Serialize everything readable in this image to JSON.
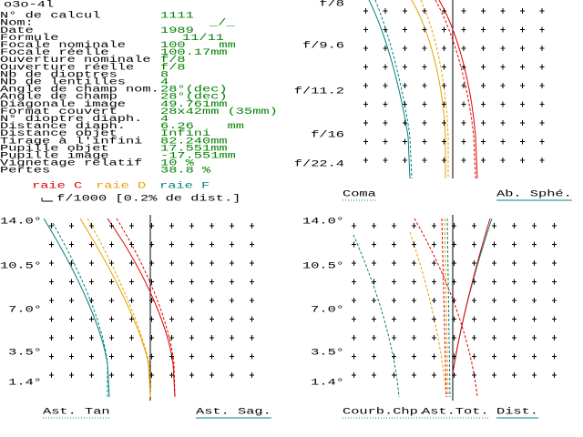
{
  "title": "o3o-4l",
  "params": [
    {
      "label": "N° de calcul",
      "value": "1111"
    },
    {
      "label": "Nom:",
      "value": "_/_"
    },
    {
      "label": "Date",
      "value": "1989"
    },
    {
      "label": "Formule",
      "value": "11/11"
    },
    {
      "label": "Focale nominale",
      "value": "100    mm"
    },
    {
      "label": "Focale réelle",
      "value": "100.17mm"
    },
    {
      "label": "Ouverture nominale",
      "value": "f/8"
    },
    {
      "label": "Ouverture réelle",
      "value": "f/8"
    },
    {
      "label": "Nb de dioptres",
      "value": "8"
    },
    {
      "label": "Nb de lentilles",
      "value": "4"
    },
    {
      "label": "Angle de champ nom.",
      "value": "28°(dec)"
    },
    {
      "label": "Angle de champ",
      "value": "28°(dec)"
    },
    {
      "label": "Diagonale image",
      "value": "49.761mm"
    },
    {
      "label": "Format couvert",
      "value": "28x42mm (35mm)"
    },
    {
      "label": "N° dioptre diaph.",
      "value": "4"
    },
    {
      "label": "Distance diaph.",
      "value": "6.26    mm"
    },
    {
      "label": "Distance objet",
      "value": "Infini"
    },
    {
      "label": "Tirage à l'infini",
      "value": "82.240mm"
    },
    {
      "label": "Pupille objet",
      "value": "17.551mm"
    },
    {
      "label": "Pupille image",
      "value": "-17.551mm"
    },
    {
      "label": "Vignetage relatif",
      "value": "10 %"
    },
    {
      "label": "Pertes",
      "value": "38.8 %"
    }
  ],
  "legend": [
    {
      "label": "raie C",
      "color": "#e00000"
    },
    {
      "label": "raie D",
      "color": "#e8a000"
    },
    {
      "label": "raie F",
      "color": "#008080"
    }
  ],
  "scale_note": "f/1000 [0.2% de dist.]",
  "plots": [
    {
      "y_labels": [
        "f/8",
        "f/9.6",
        "f/11.2",
        "f/16",
        "f/22.4"
      ],
      "footer": [
        "Coma",
        "Ab. Sphé."
      ]
    },
    {
      "y_labels": [
        "14.0°",
        "10.5°",
        "7.0°",
        "3.5°",
        "1.4°"
      ],
      "footer": [
        "Ast. Tan",
        "Ast. Sag."
      ]
    },
    {
      "y_labels": [
        "14.0°",
        "10.5°",
        "7.0°",
        "3.5°",
        "1.4°"
      ],
      "footer": [
        "Courb.Chp.",
        "Ast.Tot.",
        "Dist."
      ]
    }
  ]
}
